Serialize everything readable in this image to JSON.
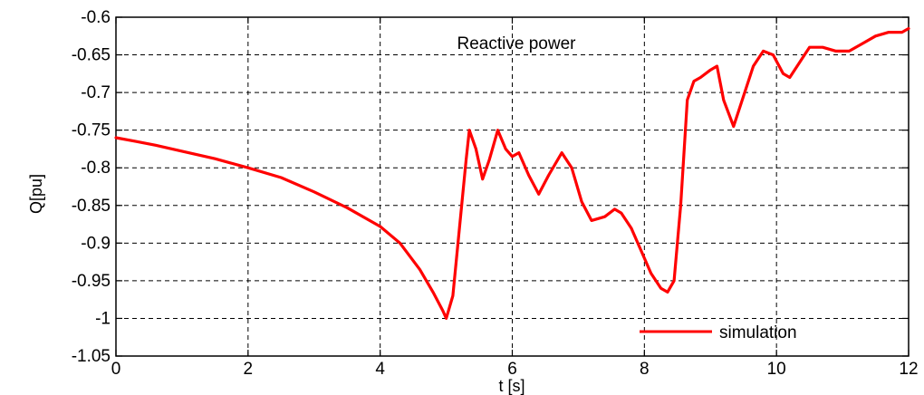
{
  "chart_data": {
    "type": "line",
    "annotation": "Reactive power",
    "xlabel": "t [s]",
    "ylabel": "Q[pu]",
    "xlim": [
      0,
      12
    ],
    "ylim": [
      -1.05,
      -0.6
    ],
    "xticks": [
      0,
      2,
      4,
      6,
      8,
      10,
      12
    ],
    "xtick_labels": [
      "0",
      "2",
      "4",
      "6",
      "8",
      "10",
      "12"
    ],
    "yticks": [
      -0.6,
      -0.65,
      -0.7,
      -0.75,
      -0.8,
      -0.85,
      -0.9,
      -0.95,
      -1,
      -1.05
    ],
    "ytick_labels": [
      "-0.6",
      "-0.65",
      "-0.7",
      "-0.75",
      "-0.8",
      "-0.85",
      "-0.9",
      "-0.95",
      "-1",
      "-1.05"
    ],
    "grid": true,
    "legend_position": "bottom-right",
    "series": [
      {
        "name": "simulation",
        "color": "#ff0000",
        "x": [
          0,
          0.3,
          0.6,
          1.0,
          1.5,
          2.0,
          2.5,
          3.0,
          3.5,
          4.0,
          4.3,
          4.6,
          4.8,
          4.95,
          5.0,
          5.1,
          5.2,
          5.3,
          5.35,
          5.45,
          5.55,
          5.65,
          5.78,
          5.9,
          6.0,
          6.1,
          6.25,
          6.4,
          6.55,
          6.75,
          6.9,
          7.05,
          7.2,
          7.4,
          7.55,
          7.65,
          7.8,
          7.95,
          8.1,
          8.25,
          8.35,
          8.45,
          8.55,
          8.65,
          8.75,
          8.85,
          9.0,
          9.1,
          9.2,
          9.35,
          9.5,
          9.65,
          9.8,
          9.95,
          10.1,
          10.2,
          10.35,
          10.5,
          10.7,
          10.9,
          11.1,
          11.3,
          11.5,
          11.7,
          11.9,
          12.0
        ],
        "y": [
          -0.76,
          -0.765,
          -0.77,
          -0.778,
          -0.788,
          -0.8,
          -0.813,
          -0.832,
          -0.853,
          -0.878,
          -0.9,
          -0.935,
          -0.965,
          -0.99,
          -1.0,
          -0.97,
          -0.88,
          -0.79,
          -0.75,
          -0.775,
          -0.815,
          -0.79,
          -0.75,
          -0.775,
          -0.785,
          -0.78,
          -0.81,
          -0.835,
          -0.81,
          -0.78,
          -0.8,
          -0.845,
          -0.87,
          -0.865,
          -0.855,
          -0.86,
          -0.88,
          -0.91,
          -0.94,
          -0.96,
          -0.965,
          -0.95,
          -0.85,
          -0.71,
          -0.685,
          -0.68,
          -0.67,
          -0.665,
          -0.71,
          -0.745,
          -0.705,
          -0.665,
          -0.645,
          -0.65,
          -0.675,
          -0.68,
          -0.66,
          -0.64,
          -0.64,
          -0.645,
          -0.645,
          -0.635,
          -0.625,
          -0.62,
          -0.62,
          -0.615
        ]
      }
    ]
  }
}
